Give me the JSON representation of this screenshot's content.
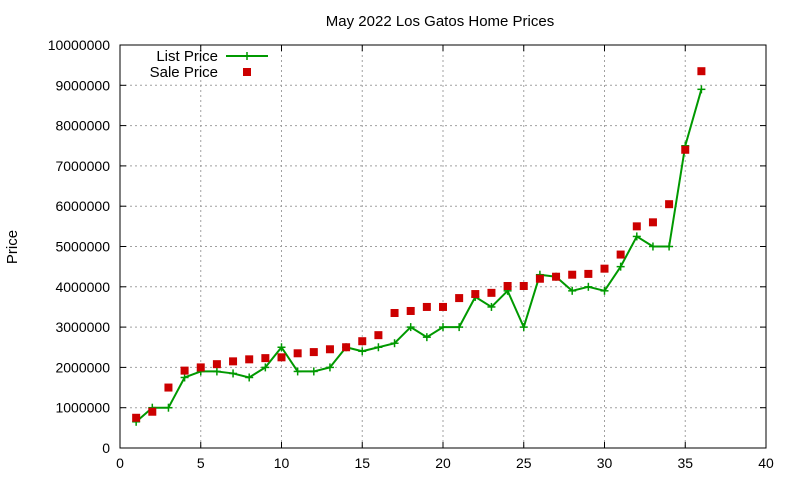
{
  "chart_data": {
    "type": "line",
    "title": "May 2022 Los Gatos Home Prices",
    "xlabel": "",
    "ylabel": "Price",
    "xlim": [
      0,
      40
    ],
    "ylim": [
      0,
      10000000
    ],
    "xticks": [
      0,
      5,
      10,
      15,
      20,
      25,
      30,
      35,
      40
    ],
    "yticks": [
      0,
      1000000,
      2000000,
      3000000,
      4000000,
      5000000,
      6000000,
      7000000,
      8000000,
      9000000,
      10000000
    ],
    "grid": true,
    "legend_position": "top-left",
    "series": [
      {
        "name": "List Price",
        "style": "linespoints",
        "color": "#009900",
        "x": [
          1,
          2,
          3,
          4,
          5,
          6,
          7,
          8,
          9,
          10,
          11,
          12,
          13,
          14,
          15,
          16,
          17,
          18,
          19,
          20,
          21,
          22,
          23,
          24,
          25,
          26,
          27,
          28,
          29,
          30,
          31,
          32,
          33,
          34,
          35,
          36
        ],
        "values": [
          650000,
          1000000,
          1000000,
          1750000,
          1900000,
          1900000,
          1850000,
          1750000,
          2000000,
          2500000,
          1900000,
          1900000,
          2000000,
          2500000,
          2400000,
          2500000,
          2600000,
          3000000,
          2750000,
          3000000,
          3000000,
          3750000,
          3500000,
          3900000,
          3000000,
          4300000,
          4250000,
          3900000,
          4000000,
          3900000,
          4500000,
          5250000,
          5000000,
          5000000,
          7500000,
          8900000
        ]
      },
      {
        "name": "Sale Price",
        "style": "points",
        "color": "#cc0000",
        "x": [
          1,
          2,
          3,
          4,
          5,
          6,
          7,
          8,
          9,
          10,
          11,
          12,
          13,
          14,
          15,
          16,
          17,
          18,
          19,
          20,
          21,
          22,
          23,
          24,
          25,
          26,
          27,
          28,
          29,
          30,
          31,
          32,
          33,
          34,
          35,
          36
        ],
        "values": [
          750000,
          900000,
          1500000,
          1920000,
          2000000,
          2080000,
          2150000,
          2200000,
          2230000,
          2250000,
          2350000,
          2380000,
          2450000,
          2500000,
          2650000,
          2800000,
          3350000,
          3400000,
          3500000,
          3500000,
          3720000,
          3820000,
          3850000,
          4020000,
          4020000,
          4200000,
          4250000,
          4300000,
          4320000,
          4450000,
          4800000,
          5500000,
          5600000,
          6050000,
          7400000,
          9350000
        ]
      }
    ]
  }
}
